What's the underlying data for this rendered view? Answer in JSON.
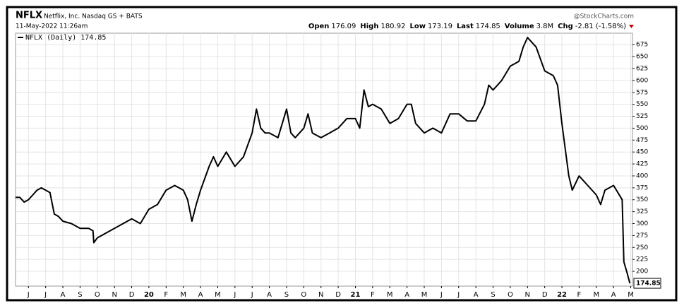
{
  "chart_data": {
    "type": "line",
    "symbol": "NFLX",
    "company": "Netflix, Inc. Nasdaq GS + BATS",
    "timestamp": "11-May-2022 11:26am",
    "source": "@StockCharts.com",
    "quote": [
      {
        "label": "Open",
        "value": 176.09
      },
      {
        "label": "High",
        "value": 180.92
      },
      {
        "label": "Low",
        "value": 173.19
      },
      {
        "label": "Last",
        "value": 174.85
      },
      {
        "label": "Volume",
        "value": "3.8M"
      },
      {
        "label": "Chg",
        "value": "-2.81 (-1.58%)"
      }
    ],
    "x": [
      -0.75,
      -0.5,
      -0.25,
      0,
      0.25,
      0.5,
      0.75,
      1,
      1.25,
      1.5,
      1.75,
      2,
      2.5,
      3,
      3.5,
      3.75,
      3.8,
      4,
      4.5,
      5,
      5.5,
      6,
      6.5,
      7,
      7.5,
      8,
      8.5,
      9,
      9.25,
      9.5,
      9.75,
      10,
      10.5,
      10.75,
      11,
      11.5,
      12,
      12.5,
      13,
      13.25,
      13.5,
      13.75,
      14,
      14.5,
      15,
      15.25,
      15.5,
      16,
      16.25,
      16.5,
      17,
      17.5,
      18,
      18.5,
      19,
      19.25,
      19.5,
      19.75,
      20,
      20.5,
      21,
      21.5,
      22,
      22.25,
      22.5,
      23,
      23.5,
      24,
      24.5,
      25,
      25.5,
      26,
      26.5,
      26.75,
      27,
      27.5,
      28,
      28.5,
      28.75,
      29,
      29.5,
      30,
      30.5,
      30.75,
      31,
      31.4,
      31.6,
      32,
      32.5,
      33,
      33.25,
      33.5,
      34,
      34.5,
      34.6,
      34.8,
      34.95
    ],
    "series": [
      {
        "name": "NFLX (Daily) 174.85",
        "color": "#000000",
        "values": [
          355,
          355,
          345,
          350,
          360,
          370,
          375,
          370,
          365,
          320,
          315,
          305,
          300,
          290,
          290,
          285,
          260,
          270,
          280,
          290,
          300,
          310,
          300,
          330,
          340,
          370,
          380,
          370,
          350,
          305,
          340,
          370,
          420,
          440,
          420,
          450,
          420,
          440,
          490,
          540,
          500,
          490,
          490,
          480,
          540,
          490,
          480,
          500,
          530,
          490,
          480,
          490,
          500,
          520,
          520,
          500,
          580,
          545,
          550,
          540,
          510,
          520,
          550,
          550,
          510,
          490,
          500,
          490,
          530,
          530,
          515,
          515,
          550,
          590,
          580,
          600,
          630,
          640,
          670,
          690,
          670,
          620,
          610,
          590,
          510,
          400,
          370,
          400,
          380,
          360,
          340,
          370,
          380,
          350,
          220,
          195,
          174.85
        ]
      }
    ],
    "xlim": [
      -0.75,
      35.1
    ],
    "xticks": [
      {
        "value": 0,
        "label": "J"
      },
      {
        "value": 1,
        "label": "J"
      },
      {
        "value": 2,
        "label": "A"
      },
      {
        "value": 3,
        "label": "S"
      },
      {
        "value": 4,
        "label": "O"
      },
      {
        "value": 5,
        "label": "N"
      },
      {
        "value": 6,
        "label": "D"
      },
      {
        "value": 7,
        "label": "20"
      },
      {
        "value": 8,
        "label": "F"
      },
      {
        "value": 9,
        "label": "M"
      },
      {
        "value": 10,
        "label": "A"
      },
      {
        "value": 11,
        "label": "M"
      },
      {
        "value": 12,
        "label": "J"
      },
      {
        "value": 13,
        "label": "J"
      },
      {
        "value": 14,
        "label": "A"
      },
      {
        "value": 15,
        "label": "S"
      },
      {
        "value": 16,
        "label": "O"
      },
      {
        "value": 17,
        "label": "N"
      },
      {
        "value": 18,
        "label": "D"
      },
      {
        "value": 19,
        "label": "21"
      },
      {
        "value": 20,
        "label": "F"
      },
      {
        "value": 21,
        "label": "M"
      },
      {
        "value": 22,
        "label": "A"
      },
      {
        "value": 23,
        "label": "M"
      },
      {
        "value": 24,
        "label": "J"
      },
      {
        "value": 25,
        "label": "J"
      },
      {
        "value": 26,
        "label": "A"
      },
      {
        "value": 27,
        "label": "S"
      },
      {
        "value": 28,
        "label": "O"
      },
      {
        "value": 29,
        "label": "N"
      },
      {
        "value": 30,
        "label": "D"
      },
      {
        "value": 31,
        "label": "22"
      },
      {
        "value": 32,
        "label": "F"
      },
      {
        "value": 33,
        "label": "M"
      },
      {
        "value": 34,
        "label": "A"
      },
      {
        "value": 35,
        "label": "M"
      }
    ],
    "ylim": [
      169,
      699
    ],
    "yticks": [
      200,
      225,
      250,
      275,
      300,
      325,
      350,
      375,
      400,
      425,
      450,
      475,
      500,
      525,
      550,
      575,
      600,
      625,
      650,
      675
    ],
    "grid": true
  }
}
